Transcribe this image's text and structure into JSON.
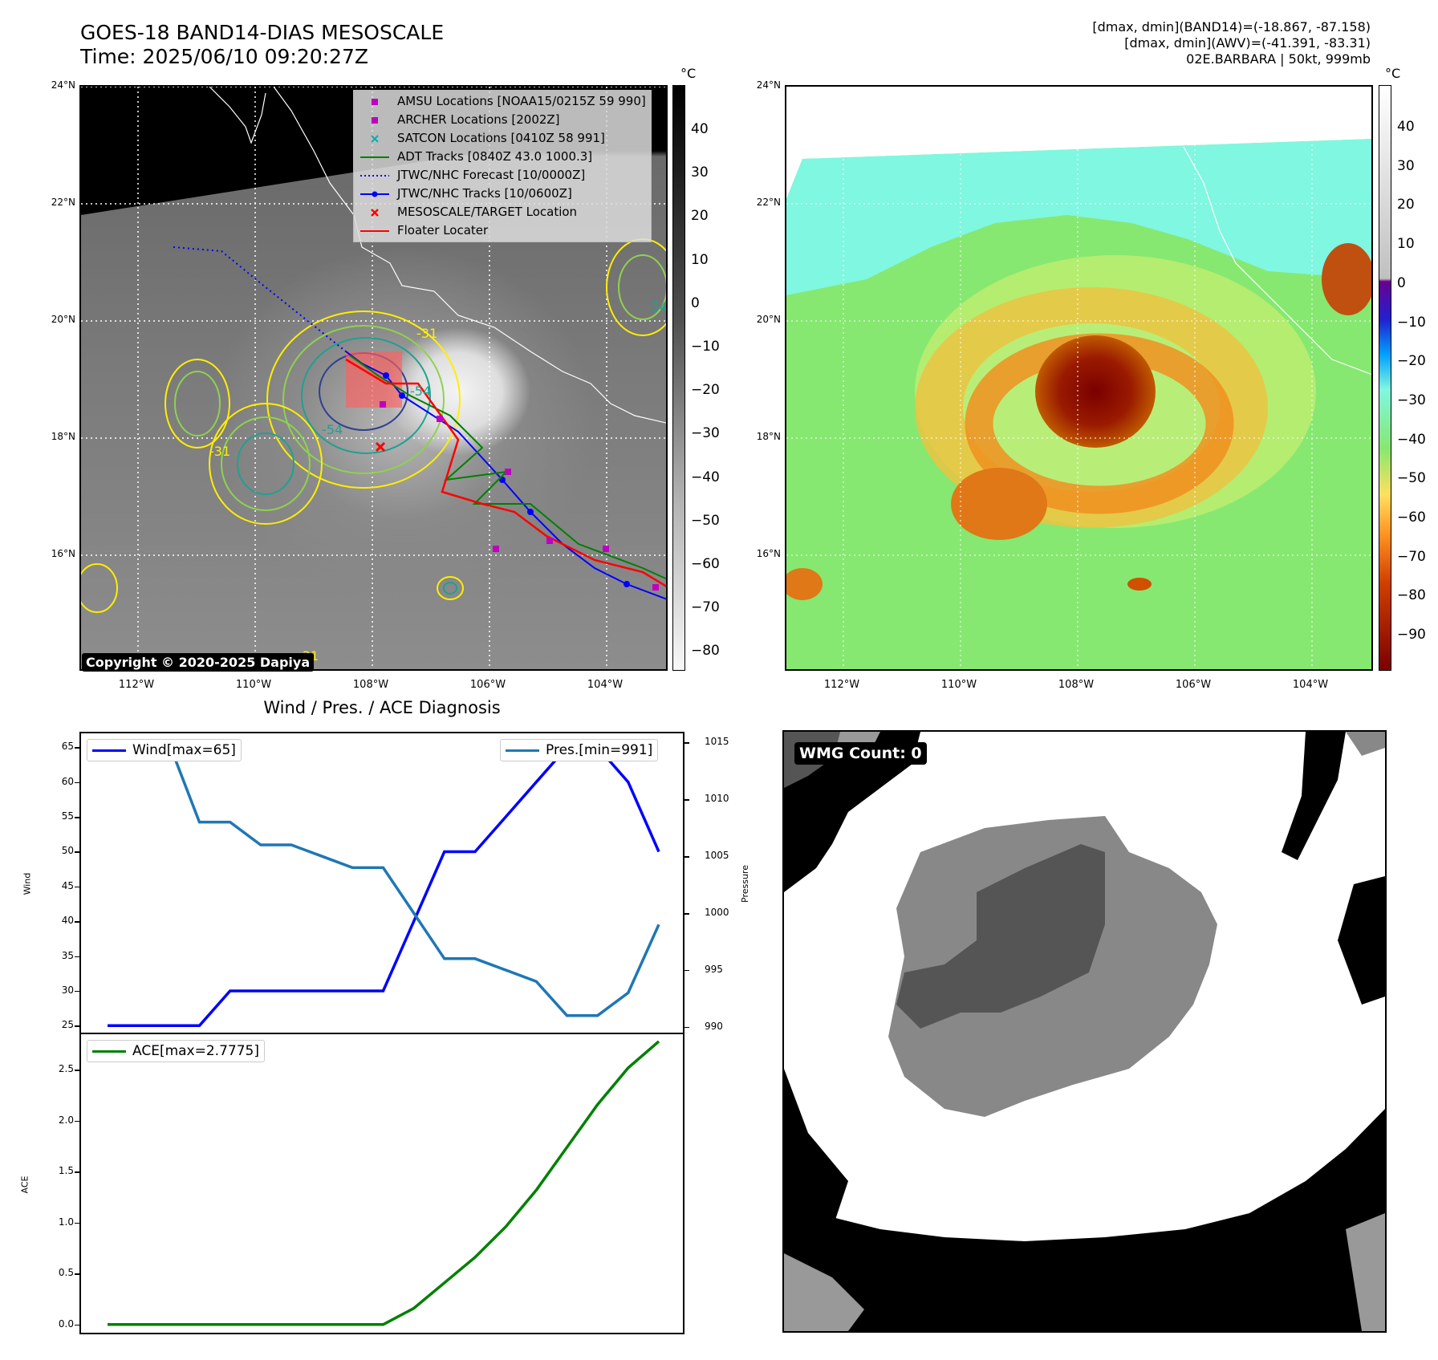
{
  "header": {
    "title_line1": "GOES-18 BAND14-DIAS MESOSCALE",
    "title_line2": "Time: 2025/06/10 09:20:27Z",
    "info_line1": "[dmax, dmin](BAND14)=(-18.867, -87.158)",
    "info_line2": "[dmax, dmin](AWV)=(-41.391, -83.31)",
    "info_line3": "02E.BARBARA | 50kt, 999mb"
  },
  "map": {
    "lat_labels": [
      "24°N",
      "22°N",
      "20°N",
      "18°N",
      "16°N"
    ],
    "lon_labels": [
      "112°W",
      "110°W",
      "108°W",
      "106°W",
      "104°W"
    ],
    "copyright": "Copyright © 2020-2025 Dapiya",
    "contour_labels": [
      "-31",
      "-54",
      "-31",
      "-54",
      "-54",
      "-31"
    ]
  },
  "legend": {
    "items": [
      {
        "label": "AMSU Locations [NOAA15/0215Z 59 990]",
        "color": "#c000c0"
      },
      {
        "label": "ARCHER Locations [2002Z]",
        "color": "#c000c0"
      },
      {
        "label": "SATCON Locations [0410Z 58 991]",
        "color": "#00b0b0"
      },
      {
        "label": "ADT Tracks [0840Z 43.0 1000.3]",
        "color": "#008000"
      },
      {
        "label": "JTWC/NHC Forecast [10/0000Z]",
        "color": "#0000ff"
      },
      {
        "label": "JTWC/NHC Tracks [10/0600Z]",
        "color": "#0000ff"
      },
      {
        "label": "MESOSCALE/TARGET Location",
        "color": "#ff0000"
      },
      {
        "label": "Floater Locater",
        "color": "#ff0000"
      }
    ]
  },
  "colorbar_left": {
    "unit": "°C",
    "ticks": [
      "40",
      "30",
      "20",
      "10",
      "0",
      "−10",
      "−20",
      "−30",
      "−40",
      "−50",
      "−60",
      "−70",
      "−80"
    ]
  },
  "colorbar_right": {
    "unit": "°C",
    "ticks": [
      "40",
      "30",
      "20",
      "10",
      "0",
      "−10",
      "−20",
      "−30",
      "−40",
      "−50",
      "−60",
      "−70",
      "−80",
      "−90"
    ]
  },
  "diagnosis": {
    "title": "Wind / Pres. / ACE Diagnosis",
    "wind_label": "Wind",
    "pressure_label": "Pressure",
    "ace_label": "ACE",
    "wind_legend": "Wind[max=65]",
    "pres_legend": "Pres.[min=991]",
    "ace_legend": "ACE[max=2.7775]"
  },
  "wmg": {
    "label": "WMG Count: 0"
  },
  "chart_data": [
    {
      "type": "line",
      "title": "Wind / Pres. / ACE Diagnosis",
      "ylabel": "Wind",
      "ylim": [
        24,
        67
      ],
      "yticks": [
        25,
        30,
        35,
        40,
        45,
        50,
        55,
        60,
        65
      ],
      "series": [
        {
          "name": "Wind[max=65]",
          "color": "#0000ff",
          "x": [
            0,
            1,
            2,
            3,
            4,
            5,
            6,
            7,
            8,
            9,
            10,
            11,
            12,
            13,
            14,
            15,
            16,
            17,
            18
          ],
          "values": [
            25,
            25,
            25,
            25,
            30,
            30,
            30,
            30,
            30,
            30,
            40,
            50,
            50,
            55,
            60,
            65,
            65,
            60,
            50
          ]
        }
      ]
    },
    {
      "type": "line",
      "ylabel": "Pressure",
      "ylim": [
        989.5,
        1015.8
      ],
      "yticks": [
        990,
        995,
        1000,
        1005,
        1010,
        1015
      ],
      "series": [
        {
          "name": "Pres.[min=991]",
          "color": "#1f77b4",
          "x": [
            0,
            1,
            2,
            3,
            4,
            5,
            6,
            7,
            8,
            9,
            10,
            11,
            12,
            13,
            14,
            15,
            16,
            17,
            18
          ],
          "values": [
            1015,
            1015,
            1015,
            1008,
            1008,
            1006,
            1006,
            1005,
            1004,
            1004,
            1000,
            996,
            996,
            995,
            994,
            991,
            991,
            993,
            999
          ]
        }
      ]
    },
    {
      "type": "line",
      "ylabel": "ACE",
      "ylim": [
        -0.08,
        2.85
      ],
      "yticks": [
        0.0,
        0.5,
        1.0,
        1.5,
        2.0,
        2.5
      ],
      "ytick_labels": [
        "0.0",
        "0.5",
        "1.0",
        "1.5",
        "2.0",
        "2.5"
      ],
      "series": [
        {
          "name": "ACE[max=2.7775]",
          "color": "#008000",
          "x": [
            0,
            1,
            2,
            3,
            4,
            5,
            6,
            7,
            8,
            9,
            10,
            11,
            12,
            13,
            14,
            15,
            16,
            17,
            18
          ],
          "values": [
            0,
            0,
            0,
            0,
            0,
            0,
            0,
            0,
            0,
            0,
            0.16,
            0.41,
            0.66,
            0.96,
            1.32,
            1.74,
            2.16,
            2.52,
            2.78
          ]
        }
      ]
    }
  ]
}
